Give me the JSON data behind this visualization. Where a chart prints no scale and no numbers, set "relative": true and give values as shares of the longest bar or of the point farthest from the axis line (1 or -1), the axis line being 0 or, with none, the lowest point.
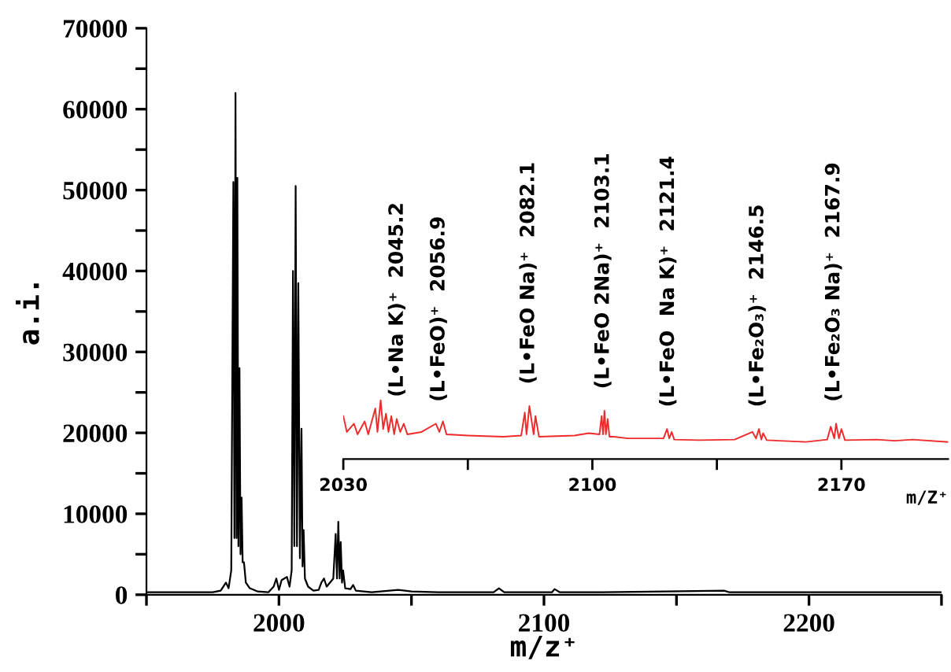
{
  "chart_data": [
    {
      "type": "line",
      "xlabel": "m/z⁺",
      "ylabel": "a.i.",
      "xlim": [
        1950,
        2250
      ],
      "ylim": [
        0,
        70000
      ],
      "xticks": [
        {
          "value": 1950,
          "label": null
        },
        2000,
        {
          "value": 2050,
          "label": null
        },
        2100,
        {
          "value": 2150,
          "label": null
        },
        2200,
        {
          "value": 2250,
          "label": null
        }
      ],
      "yticks": [
        0,
        {
          "value": 5000,
          "label": null
        },
        10000,
        {
          "value": 15000,
          "label": null
        },
        20000,
        {
          "value": 25000,
          "label": null
        },
        30000,
        {
          "value": 35000,
          "label": null
        },
        40000,
        {
          "value": 45000,
          "label": null
        },
        50000,
        {
          "value": 55000,
          "label": null
        },
        60000,
        {
          "value": 65000,
          "label": null
        },
        70000
      ],
      "grid": false,
      "series": [
        {
          "color": "#000000",
          "x": [
            1950,
            1975,
            1978,
            1980,
            1981,
            1982,
            1982.8,
            1983.2,
            1983.6,
            1984.0,
            1984.3,
            1984.7,
            1985.1,
            1985.5,
            1985.9,
            1986.3,
            1986.8,
            1987.5,
            1989,
            1992,
            1996,
            1998,
            1999,
            2000,
            2001,
            2002,
            2003,
            2004,
            2004.8,
            2005.3,
            2005.8,
            2006.3,
            2006.8,
            2007.3,
            2007.9,
            2008.5,
            2008.9,
            2009.3,
            2009.8,
            2011,
            2013,
            2015,
            2016,
            2017,
            2018,
            2020.5,
            2021.4,
            2021.9,
            2022.4,
            2022.9,
            2023.3,
            2023.8,
            2024.2,
            2025,
            2027,
            2028,
            2029,
            2032,
            2035,
            2045,
            2050,
            2060,
            2081,
            2083,
            2085,
            2103,
            2104,
            2106,
            2122,
            2146,
            2168,
            2170,
            2250
          ],
          "values": [
            300,
            300,
            500,
            1500,
            800,
            3000,
            51000,
            7000,
            62000,
            7000,
            51500,
            6000,
            28000,
            5000,
            12000,
            4000,
            4000,
            1500,
            800,
            400,
            300,
            1000,
            2000,
            600,
            1800,
            2000,
            2200,
            1000,
            3000,
            40000,
            6000,
            50500,
            6000,
            38500,
            4500,
            20500,
            3500,
            8000,
            2000,
            1000,
            500,
            600,
            1500,
            2000,
            1000,
            2000,
            7500,
            2000,
            9000,
            2000,
            6500,
            1500,
            3000,
            800,
            700,
            1200,
            500,
            400,
            300,
            600,
            400,
            300,
            300,
            800,
            300,
            300,
            700,
            300,
            300,
            400,
            500,
            300,
            300
          ]
        }
      ]
    },
    {
      "type": "line",
      "xlabel": "m/Z⁺",
      "relative": true,
      "tick_labels": "x",
      "xlim": [
        2030,
        2200
      ],
      "xticks": [
        2030,
        {
          "value": 2065,
          "label": null
        },
        2100,
        {
          "value": 2135,
          "label": null
        },
        2170
      ],
      "grid": false,
      "annotations": [
        {
          "text": "(L•Na K)⁺  2045.2",
          "x": 2045.2,
          "y": 0.68
        },
        {
          "text": "(L•FeO)⁺  2056.9",
          "x": 2056.9,
          "y": 0.6
        },
        {
          "text": "(L•FeO Na)⁺  2082.1",
          "x": 2082.1,
          "y": 0.9
        },
        {
          "text": "(L•FeO 2Na)⁺  2103.1",
          "x": 2103.1,
          "y": 0.82
        },
        {
          "text": "(L•FeO  Na K)⁺  2121.4",
          "x": 2121.4,
          "y": 0.51
        },
        {
          "text": "(L•Fe₂O₃)⁺  2146.5",
          "x": 2146.5,
          "y": 0.51
        },
        {
          "text": "(L•Fe₂O₃ Na)⁺  2167.9",
          "x": 2167.9,
          "y": 0.6
        }
      ],
      "series": [
        {
          "color": "#ee2a2a",
          "x": [
            2030,
            2031,
            2033,
            2034,
            2036,
            2037,
            2039,
            2039.6,
            2040.5,
            2041.2,
            2042,
            2042.7,
            2043.5,
            2044.3,
            2045,
            2046,
            2047,
            2048,
            2052,
            2056,
            2057,
            2058,
            2059,
            2065,
            2075,
            2080,
            2081,
            2081.5,
            2082.3,
            2083.5,
            2084,
            2085,
            2095,
            2099,
            2102,
            2102.6,
            2103,
            2103.4,
            2103.8,
            2104.3,
            2104.8,
            2106,
            2110,
            2120,
            2121,
            2121.6,
            2122.3,
            2123,
            2130,
            2140,
            2145,
            2146,
            2146.8,
            2147.5,
            2148,
            2149,
            2160,
            2166,
            2167,
            2168,
            2168.5,
            2169.3,
            2170,
            2171,
            2180,
            2185,
            2190,
            2200
          ],
          "values": [
            0.73,
            0.46,
            0.6,
            0.42,
            0.64,
            0.42,
            0.86,
            0.46,
            1.0,
            0.51,
            0.77,
            0.46,
            0.73,
            0.42,
            0.68,
            0.46,
            0.6,
            0.42,
            0.46,
            0.6,
            0.46,
            0.64,
            0.42,
            0.4,
            0.38,
            0.4,
            0.79,
            0.42,
            0.9,
            0.42,
            0.73,
            0.38,
            0.4,
            0.44,
            0.42,
            0.73,
            0.42,
            0.82,
            0.42,
            0.68,
            0.38,
            0.38,
            0.35,
            0.35,
            0.51,
            0.35,
            0.46,
            0.33,
            0.32,
            0.33,
            0.46,
            0.35,
            0.51,
            0.33,
            0.44,
            0.32,
            0.29,
            0.33,
            0.55,
            0.35,
            0.6,
            0.35,
            0.51,
            0.32,
            0.33,
            0.31,
            0.33,
            0.29
          ]
        }
      ]
    }
  ]
}
